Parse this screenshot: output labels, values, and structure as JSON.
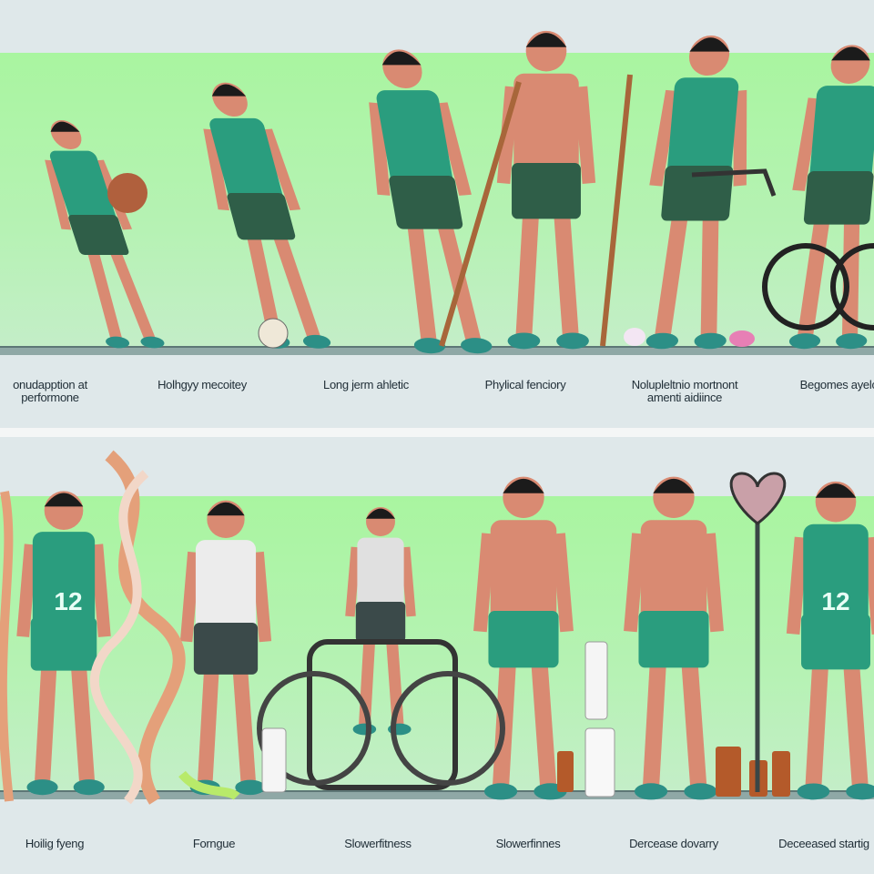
{
  "top_panel": {
    "labels": [
      "onudapption at\nperformone",
      "Holhgyy mecoitey",
      "Long jerm ahletic",
      "Phylical fenciory",
      "Nolupleltnio mortnont\namenti aidiince",
      "Begomes ayelon"
    ]
  },
  "bottom_panel": {
    "labels": [
      "Hoilig fyeng",
      "Forngue",
      "Slowerfitness",
      "Slowerfinnes",
      "Dercease dovarry",
      "Deceeased startig"
    ],
    "jersey_numbers": [
      "12",
      "12"
    ]
  },
  "colors": {
    "band_green": "#a9f5a0",
    "jersey_teal": "#2a9d7e",
    "shorts_green": "#2f5e48",
    "skin": "#d98a72",
    "panel_bg": "#dfe8ea"
  }
}
